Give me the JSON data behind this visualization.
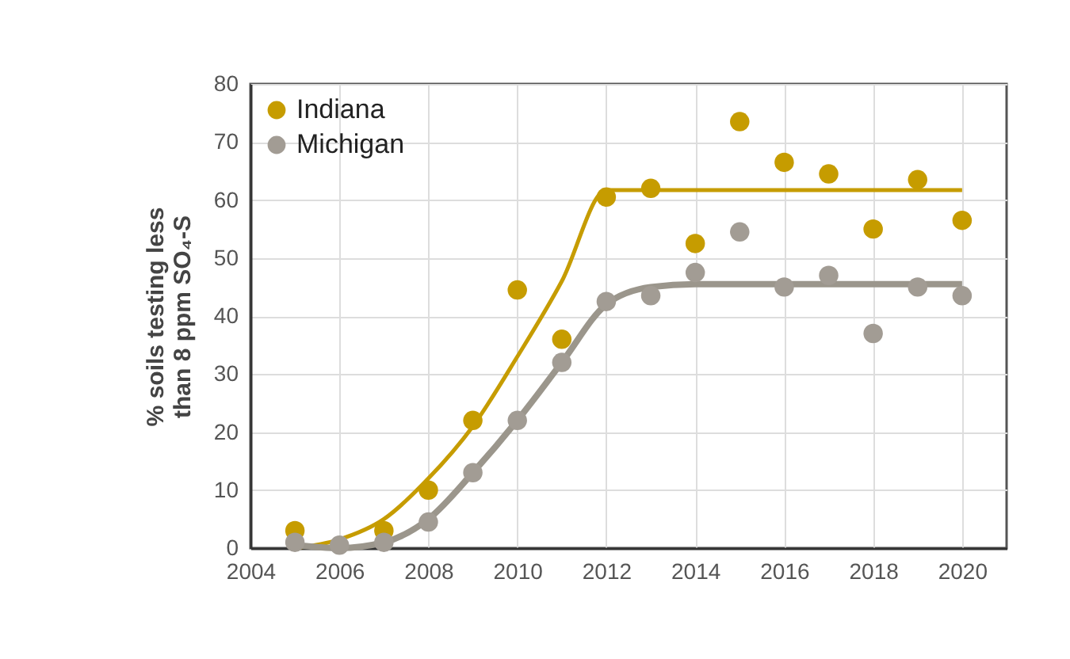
{
  "chart_data": {
    "type": "scatter",
    "ylabel": "% soils testing less than 8 ppm SO₄-S",
    "x": [
      2005,
      2006,
      2007,
      2008,
      2009,
      2010,
      2011,
      2012,
      2013,
      2014,
      2015,
      2016,
      2017,
      2018,
      2019,
      2020
    ],
    "series": [
      {
        "name": "Indiana",
        "color": "#c69c00",
        "marker": "circle",
        "values": [
          3,
          null,
          3,
          10,
          22,
          44.5,
          36,
          60.5,
          62,
          52.5,
          73.5,
          66.5,
          64.5,
          55,
          63.5,
          56.5
        ]
      },
      {
        "name": "Michigan",
        "color": "#a29c94",
        "marker": "circle",
        "values": [
          1,
          0.5,
          1,
          4.5,
          13,
          22,
          32,
          42.5,
          43.5,
          47.5,
          54.5,
          45,
          47,
          37,
          45,
          43.5
        ]
      },
      {
        "type": "line",
        "color": "#c69c00",
        "marker": "none",
        "x": [
          2005,
          2006,
          2007,
          2008,
          2009,
          2010,
          2011,
          2012,
          2020
        ],
        "values": [
          0,
          1.5,
          5,
          12,
          21,
          33,
          46,
          61.7,
          61.7
        ]
      },
      {
        "type": "line",
        "color": "#9b968c",
        "marker": "none",
        "x": [
          2005,
          2006,
          2007,
          2008,
          2009,
          2010,
          2011,
          2012,
          2013,
          2014,
          2020
        ],
        "values": [
          0.5,
          0,
          1,
          5,
          13,
          22,
          32,
          42,
          45,
          45.5,
          45.5
        ]
      }
    ],
    "xlim": [
      2004,
      2021
    ],
    "xticks": [
      2004,
      2006,
      2008,
      2010,
      2012,
      2014,
      2016,
      2018,
      2020
    ],
    "ylim": [
      0,
      80
    ],
    "yticks": [
      0,
      10,
      20,
      30,
      40,
      50,
      60,
      70,
      80
    ],
    "grid": true,
    "legend": "top left",
    "line_style": "solid"
  }
}
